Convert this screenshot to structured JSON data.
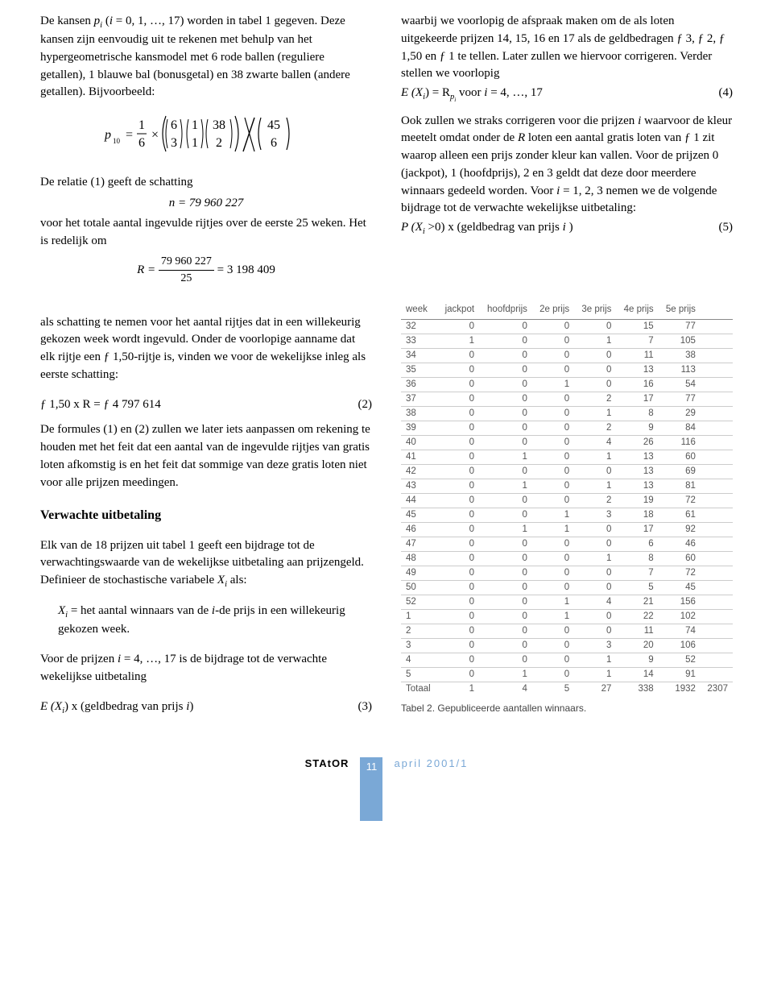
{
  "leftCol": {
    "p1a": "De kansen ",
    "p1b": "p",
    "p1c": "i",
    "p1d": " (",
    "p1e": "i",
    "p1f": " = 0, 1, …, 17) worden in tabel 1 gegeven. Deze kansen zijn eenvoudig uit te rekenen met behulp van het hypergeometrische kansmodel met 6 rode ballen (reguliere getallen), 1 blauwe bal (bonusgetal) en 38 zwarte ballen (andere getallen). Bijvoorbeeld:",
    "relatie": "De relatie (1) geeft de schatting",
    "n_eq": "n = 79 960 227",
    "voor_totale": "voor het totale aantal ingevulde rijtjes over de eerste 25 weken. Het is redelijk om",
    "R_pre": "R = ",
    "R_num": "79 960 227",
    "R_den": "25",
    "R_post": " = 3 198 409"
  },
  "rightCol": {
    "p1": "waarbij we voorlopig de afspraak maken om de als loten uitgekeerde prijzen 14, 15, 16 en 17 als de geldbedragen ƒ 3, ƒ 2, ƒ 1,50 en ƒ 1 te tellen. Later zullen we hiervoor corrigeren. Verder stellen we voorlopig",
    "eq4_lhs": "E (X",
    "eq4_i1": "i",
    "eq4_mid": ") = R",
    "eq4_sub": "p",
    "eq4_subsub": "i",
    "eq4_voor": " voor ",
    "eq4_i2": "i",
    "eq4_rest": " = 4, …, 17",
    "eq4_num": "(4)",
    "p2a": "Ook zullen we straks corrigeren voor die prijzen ",
    "p2a_i": "i",
    "p2b": " waarvoor de kleur meetelt omdat onder de ",
    "p2b_R": "R",
    "p2c": " loten een aantal gratis loten van ƒ 1 zit waarop alleen een prijs zonder kleur kan vallen. Voor de prijzen 0 (jackpot), 1 (hoofdprijs), 2 en 3 geldt dat deze door meerdere winnaars gedeeld worden. Voor ",
    "p2c_i": "i",
    "p2d": " = 1, 2, 3 nemen we de volgende bijdrage tot de verwachte wekelijkse uitbetaling:",
    "eq5_lhs": "P (X",
    "eq5_i": "i",
    "eq5_mid": " >0) x (geldbedrag van prijs ",
    "eq5_i2": "i",
    "eq5_end": " )",
    "eq5_num": "(5)"
  },
  "lowerLeft": {
    "p1": "als schatting te nemen voor het aantal rijtjes dat in een willekeurig gekozen week wordt ingevuld. Onder de voorlopige aanname dat elk rijtje een ƒ 1,50-rijtje is, vinden we voor de wekelijkse inleg als eerste schatting:",
    "eq2_lhs": "ƒ 1,50 x R = ƒ 4 797 614",
    "eq2_num": "(2)",
    "p2": "De formules (1) en (2) zullen we later iets aanpassen om rekening te houden met het feit dat een aantal van de ingevulde rijtjes van gratis loten afkomstig is en het feit dat sommige van deze gratis loten niet voor alle prijzen meedingen.",
    "sec_title": "Verwachte uitbetaling",
    "p3a": "Elk van de 18 prijzen uit tabel 1 geeft een bijdrage tot de verwachtingswaarde van de wekelijkse uitbetaling aan prijzengeld. Definieer de stochastische variabele ",
    "p3_X": "X",
    "p3_i": "i",
    "p3b": " als:",
    "def_X": "X",
    "def_i1": "i",
    "def_mid": " = het aantal winnaars van de ",
    "def_i2": "i",
    "def_end": "-de prijs in een willekeurig gekozen week.",
    "p4a": "Voor de prijzen ",
    "p4_i": "i",
    "p4b": " = 4, …, 17 is de bijdrage tot de verwachte wekelijkse uitbetaling",
    "eq3_lhs_a": "E (X",
    "eq3_i": "i",
    "eq3_lhs_b": ") x (geldbedrag van prijs ",
    "eq3_i2": "i",
    "eq3_lhs_c": ")",
    "eq3_num": "(3)"
  },
  "table": {
    "headers": [
      "week",
      "jackpot",
      "hoofdprijs",
      "2e prijs",
      "3e prijs",
      "4e prijs",
      "5e prijs"
    ],
    "rows": [
      [
        "32",
        "0",
        "0",
        "0",
        "0",
        "15",
        "77"
      ],
      [
        "33",
        "1",
        "0",
        "0",
        "1",
        "7",
        "105"
      ],
      [
        "34",
        "0",
        "0",
        "0",
        "0",
        "11",
        "38"
      ],
      [
        "35",
        "0",
        "0",
        "0",
        "0",
        "13",
        "113"
      ],
      [
        "36",
        "0",
        "0",
        "1",
        "0",
        "16",
        "54"
      ],
      [
        "37",
        "0",
        "0",
        "0",
        "2",
        "17",
        "77"
      ],
      [
        "38",
        "0",
        "0",
        "0",
        "1",
        "8",
        "29"
      ],
      [
        "39",
        "0",
        "0",
        "0",
        "2",
        "9",
        "84"
      ],
      [
        "40",
        "0",
        "0",
        "0",
        "4",
        "26",
        "116"
      ],
      [
        "41",
        "0",
        "1",
        "0",
        "1",
        "13",
        "60"
      ],
      [
        "42",
        "0",
        "0",
        "0",
        "0",
        "13",
        "69"
      ],
      [
        "43",
        "0",
        "1",
        "0",
        "1",
        "13",
        "81"
      ],
      [
        "44",
        "0",
        "0",
        "0",
        "2",
        "19",
        "72"
      ],
      [
        "45",
        "0",
        "0",
        "1",
        "3",
        "18",
        "61"
      ],
      [
        "46",
        "0",
        "1",
        "1",
        "0",
        "17",
        "92"
      ],
      [
        "47",
        "0",
        "0",
        "0",
        "0",
        "6",
        "46"
      ],
      [
        "48",
        "0",
        "0",
        "0",
        "1",
        "8",
        "60"
      ],
      [
        "49",
        "0",
        "0",
        "0",
        "0",
        "7",
        "72"
      ],
      [
        "50",
        "0",
        "0",
        "0",
        "0",
        "5",
        "45"
      ],
      [
        "52",
        "0",
        "0",
        "1",
        "4",
        "21",
        "156"
      ],
      [
        "1",
        "0",
        "0",
        "1",
        "0",
        "22",
        "102"
      ],
      [
        "2",
        "0",
        "0",
        "0",
        "0",
        "11",
        "74"
      ],
      [
        "3",
        "0",
        "0",
        "0",
        "3",
        "20",
        "106"
      ],
      [
        "4",
        "0",
        "0",
        "0",
        "1",
        "9",
        "52"
      ],
      [
        "5",
        "0",
        "1",
        "0",
        "1",
        "14",
        "91"
      ]
    ],
    "total_label": "Totaal",
    "total": [
      "1",
      "4",
      "5",
      "27",
      "338",
      "1932"
    ],
    "grand_total": "2307",
    "caption": "Tabel 2. Gepubliceerde aantallen winnaars."
  },
  "footer": {
    "left": "STAtOR",
    "page": "11",
    "right": "april 2001/1"
  },
  "formula_svg": {
    "text_parts": {
      "p10": "p",
      "sub10": "10",
      "eq": " = ",
      "frac16_num": "1",
      "frac16_den": "6",
      "times": " × ",
      "b1_top": "6",
      "b1_bot": "3",
      "b2_top": "1",
      "b2_bot": "1",
      "b3_top": "38",
      "b3_bot": "2",
      "b4_top": "45",
      "b4_bot": "6"
    }
  }
}
